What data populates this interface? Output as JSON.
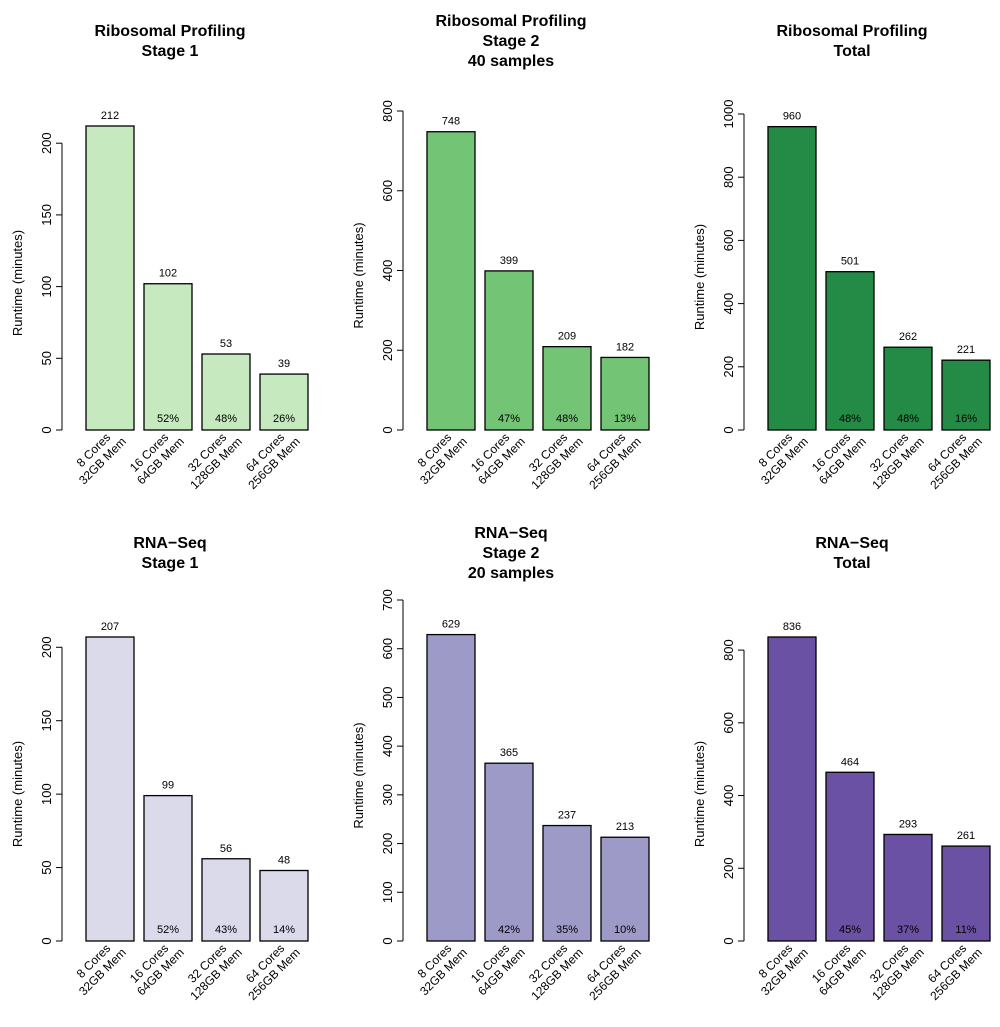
{
  "chart_data": [
    {
      "type": "bar",
      "title": [
        "Ribosomal Profiling",
        "Stage 1"
      ],
      "ylabel": "Runtime (minutes)",
      "categories": [
        [
          "8 Cores",
          "32GB Mem"
        ],
        [
          "16 Cores",
          "64GB Mem"
        ],
        [
          "32 Cores",
          "128GB Mem"
        ],
        [
          "64 Cores",
          "256GB Mem"
        ]
      ],
      "values": [
        212,
        102,
        53,
        39
      ],
      "percent_labels": [
        "",
        "52%",
        "48%",
        "26%"
      ],
      "yticks": [
        0,
        50,
        100,
        150,
        200
      ],
      "ylim": [
        0,
        212
      ],
      "color": "#c7e9c0"
    },
    {
      "type": "bar",
      "title": [
        "Ribosomal Profiling",
        "Stage 2",
        "40 samples"
      ],
      "ylabel": "Runtime (minutes)",
      "categories": [
        [
          "8 Cores",
          "32GB Mem"
        ],
        [
          "16 Cores",
          "64GB Mem"
        ],
        [
          "32 Cores",
          "128GB Mem"
        ],
        [
          "64 Cores",
          "256GB Mem"
        ]
      ],
      "values": [
        748,
        399,
        209,
        182
      ],
      "percent_labels": [
        "",
        "47%",
        "48%",
        "13%"
      ],
      "yticks": [
        0,
        200,
        400,
        600,
        800
      ],
      "ylim": [
        0,
        800
      ],
      "color": "#74c476"
    },
    {
      "type": "bar",
      "title": [
        "Ribosomal Profiling",
        "Total"
      ],
      "ylabel": "Runtime (minutes)",
      "categories": [
        [
          "8 Cores",
          "32GB Mem"
        ],
        [
          "16 Cores",
          "64GB Mem"
        ],
        [
          "32 Cores",
          "128GB Mem"
        ],
        [
          "64 Cores",
          "256GB Mem"
        ]
      ],
      "values": [
        960,
        501,
        262,
        221
      ],
      "percent_labels": [
        "",
        "48%",
        "48%",
        "16%"
      ],
      "yticks": [
        0,
        200,
        400,
        600,
        800,
        1000
      ],
      "ylim": [
        0,
        1000
      ],
      "color": "#238b45"
    },
    {
      "type": "bar",
      "title": [
        "RNA−Seq",
        "Stage 1"
      ],
      "ylabel": "Runtime (minutes)",
      "categories": [
        [
          "8 Cores",
          "32GB Mem"
        ],
        [
          "16 Cores",
          "64GB Mem"
        ],
        [
          "32 Cores",
          "128GB Mem"
        ],
        [
          "64 Cores",
          "256GB Mem"
        ]
      ],
      "values": [
        207,
        99,
        56,
        48
      ],
      "percent_labels": [
        "",
        "52%",
        "43%",
        "14%"
      ],
      "yticks": [
        0,
        50,
        100,
        150,
        200
      ],
      "ylim": [
        0,
        207
      ],
      "color": "#dadaeb"
    },
    {
      "type": "bar",
      "title": [
        "RNA−Seq",
        "Stage 2",
        "20 samples"
      ],
      "ylabel": "Runtime (minutes)",
      "categories": [
        [
          "8 Cores",
          "32GB Mem"
        ],
        [
          "16 Cores",
          "64GB Mem"
        ],
        [
          "32 Cores",
          "128GB Mem"
        ],
        [
          "64 Cores",
          "256GB Mem"
        ]
      ],
      "values": [
        629,
        365,
        237,
        213
      ],
      "percent_labels": [
        "",
        "42%",
        "35%",
        "10%"
      ],
      "yticks": [
        0,
        100,
        200,
        300,
        400,
        500,
        600,
        700
      ],
      "ylim": [
        0,
        700
      ],
      "color": "#9e9ac8"
    },
    {
      "type": "bar",
      "title": [
        "RNA−Seq",
        "Total"
      ],
      "ylabel": "Runtime (minutes)",
      "categories": [
        [
          "8 Cores",
          "32GB Mem"
        ],
        [
          "16 Cores",
          "64GB Mem"
        ],
        [
          "32 Cores",
          "128GB Mem"
        ],
        [
          "64 Cores",
          "256GB Mem"
        ]
      ],
      "values": [
        836,
        464,
        293,
        261
      ],
      "percent_labels": [
        "",
        "45%",
        "37%",
        "11%"
      ],
      "yticks": [
        0,
        200,
        400,
        600,
        800
      ],
      "ylim": [
        0,
        836
      ],
      "color": "#6a51a3"
    }
  ]
}
